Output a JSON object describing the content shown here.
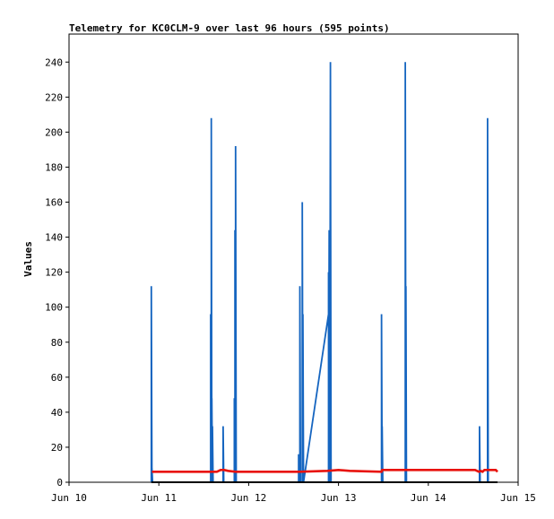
{
  "chart_data": {
    "type": "line",
    "title": "Telemetry for KC0CLM-9 over last 96 hours (595 points)",
    "ylabel": "Values",
    "xlabel": "",
    "x_ticks": [
      "Jun 10",
      "Jun 11",
      "Jun 12",
      "Jun 13",
      "Jun 14",
      "Jun 15"
    ],
    "y_ticks": [
      0,
      20,
      40,
      60,
      80,
      100,
      120,
      140,
      160,
      180,
      200,
      220,
      240
    ],
    "xlim": [
      "Jun 10 00:00",
      "Jun 15 00:00"
    ],
    "ylim": [
      0,
      256
    ],
    "grid": false,
    "legend": "none",
    "colors": {
      "blue_series": "#1565c0",
      "red_series": "#e8120c",
      "black_series": "#000000"
    },
    "series": [
      {
        "color": "#1565c0",
        "points": [
          [
            "Jun 10 22:00",
            0
          ],
          [
            "Jun 10 22:00",
            112
          ],
          [
            "Jun 10 22:10",
            0
          ],
          [
            "Jun 10 22:10",
            8
          ],
          [
            "Jun 10 22:20",
            0
          ],
          [
            "Jun 11 13:50",
            0
          ],
          [
            "Jun 11 13:50",
            96
          ],
          [
            "Jun 11 14:00",
            0
          ],
          [
            "Jun 11 14:00",
            208
          ],
          [
            "Jun 11 14:10",
            0
          ],
          [
            "Jun 11 14:10",
            48
          ],
          [
            "Jun 11 14:20",
            0
          ],
          [
            "Jun 11 14:20",
            32
          ],
          [
            "Jun 11 14:30",
            0
          ],
          [
            "Jun 11 17:10",
            0
          ],
          [
            "Jun 11 17:10",
            32
          ],
          [
            "Jun 11 17:20",
            0
          ],
          [
            "Jun 11 20:10",
            0
          ],
          [
            "Jun 11 20:10",
            48
          ],
          [
            "Jun 11 20:20",
            0
          ],
          [
            "Jun 11 20:20",
            144
          ],
          [
            "Jun 11 20:30",
            0
          ],
          [
            "Jun 11 20:30",
            192
          ],
          [
            "Jun 11 20:40",
            0
          ],
          [
            "Jun 12 13:20",
            0
          ],
          [
            "Jun 12 13:20",
            16
          ],
          [
            "Jun 12 13:30",
            0
          ],
          [
            "Jun 12 13:30",
            16
          ],
          [
            "Jun 12 13:40",
            0
          ],
          [
            "Jun 12 13:40",
            112
          ],
          [
            "Jun 12 13:50",
            0
          ],
          [
            "Jun 12 14:20",
            0
          ],
          [
            "Jun 12 14:20",
            160
          ],
          [
            "Jun 12 14:30",
            0
          ],
          [
            "Jun 12 14:30",
            96
          ],
          [
            "Jun 12 14:40",
            0
          ],
          [
            "Jun 12 21:20",
            96
          ],
          [
            "Jun 12 21:20",
            120
          ],
          [
            "Jun 12 21:20",
            0
          ],
          [
            "Jun 12 21:30",
            144
          ],
          [
            "Jun 12 21:30",
            0
          ],
          [
            "Jun 12 21:40",
            144
          ],
          [
            "Jun 12 21:40",
            0
          ],
          [
            "Jun 12 21:50",
            240
          ],
          [
            "Jun 12 22:00",
            0
          ],
          [
            "Jun 13 11:30",
            0
          ],
          [
            "Jun 13 11:30",
            96
          ],
          [
            "Jun 13 11:40",
            0
          ],
          [
            "Jun 13 11:40",
            32
          ],
          [
            "Jun 13 11:50",
            0
          ],
          [
            "Jun 13 17:50",
            0
          ],
          [
            "Jun 13 17:50",
            240
          ],
          [
            "Jun 13 18:00",
            0
          ],
          [
            "Jun 13 18:00",
            112
          ],
          [
            "Jun 13 18:10",
            0
          ],
          [
            "Jun 14 13:40",
            0
          ],
          [
            "Jun 14 13:40",
            32
          ],
          [
            "Jun 14 13:50",
            0
          ],
          [
            "Jun 14 15:50",
            0
          ],
          [
            "Jun 14 15:50",
            208
          ],
          [
            "Jun 14 16:00",
            0
          ]
        ]
      },
      {
        "color": "#e8120c",
        "points": [
          [
            "Jun 10 22:10",
            6
          ],
          [
            "Jun 11 13:50",
            6
          ],
          [
            "Jun 11 14:30",
            6
          ],
          [
            "Jun 11 15:30",
            6
          ],
          [
            "Jun 11 16:30",
            7
          ],
          [
            "Jun 11 17:30",
            7
          ],
          [
            "Jun 11 18:30",
            6.5
          ],
          [
            "Jun 11 20:30",
            6
          ],
          [
            "Jun 12 03:00",
            6
          ],
          [
            "Jun 12 13:30",
            6
          ],
          [
            "Jun 12 21:00",
            6.5
          ],
          [
            "Jun 13 00:00",
            7
          ],
          [
            "Jun 13 03:00",
            6.5
          ],
          [
            "Jun 13 11:30",
            6
          ],
          [
            "Jun 13 11:40",
            7
          ],
          [
            "Jun 13 17:50",
            7
          ],
          [
            "Jun 14 06:00",
            7
          ],
          [
            "Jun 14 12:30",
            7
          ],
          [
            "Jun 14 13:30",
            6
          ],
          [
            "Jun 14 14:00",
            6.5
          ],
          [
            "Jun 14 14:30",
            6
          ],
          [
            "Jun 14 15:00",
            7
          ],
          [
            "Jun 14 16:00",
            7
          ],
          [
            "Jun 14 18:00",
            7
          ],
          [
            "Jun 14 18:30",
            6
          ]
        ]
      },
      {
        "color": "#000000",
        "points": [
          [
            "Jun 10 22:00",
            0
          ],
          [
            "Jun 14 18:30",
            0
          ]
        ]
      }
    ]
  }
}
